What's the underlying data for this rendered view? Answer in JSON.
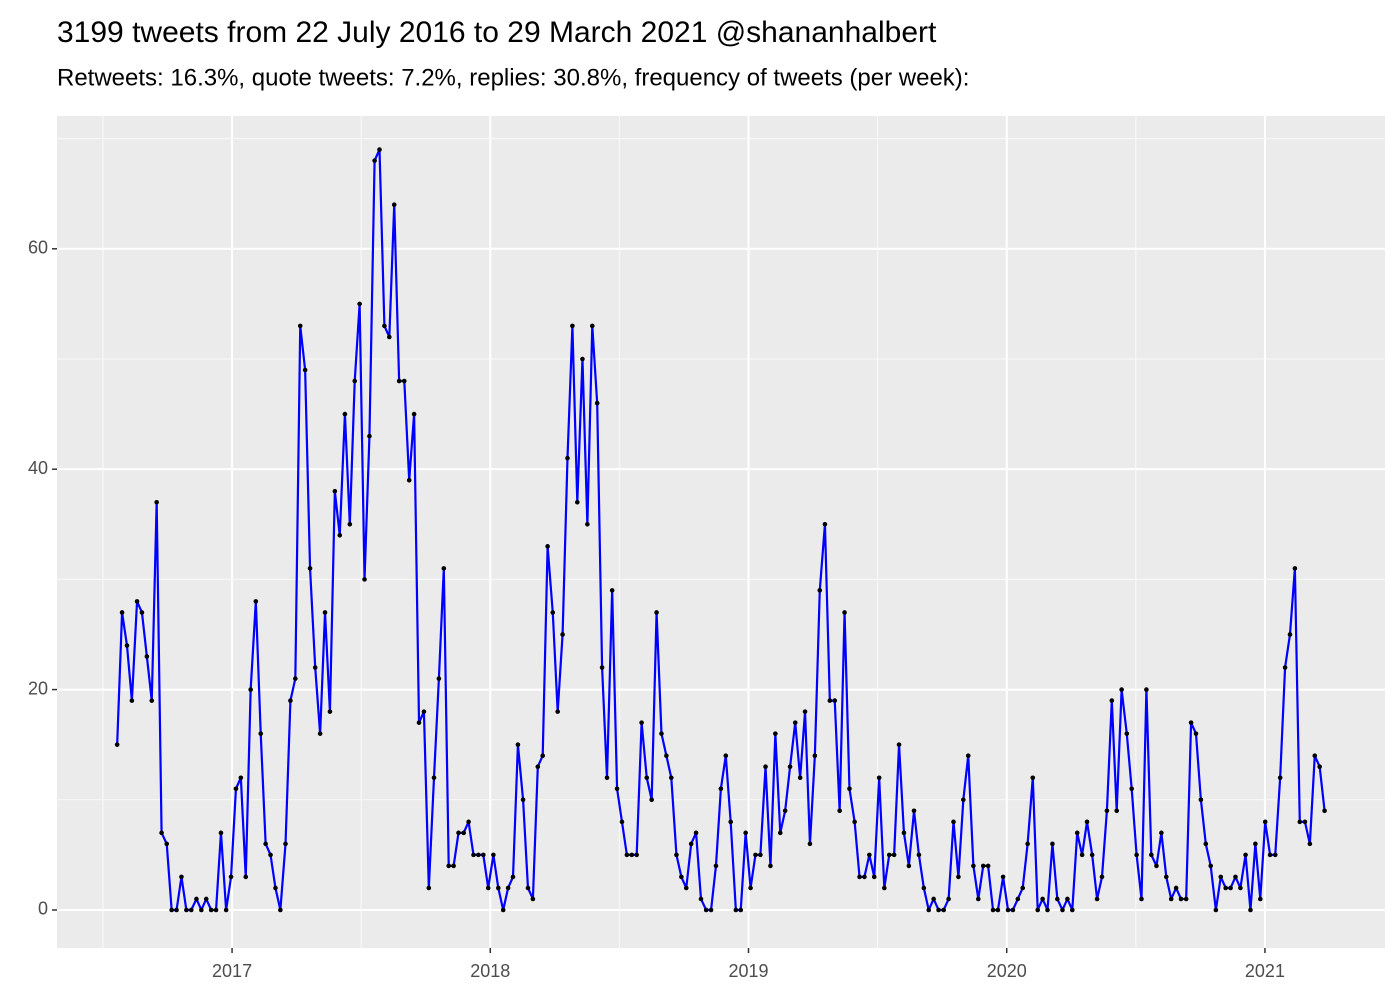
{
  "chart_data": {
    "type": "line",
    "title": "3199 tweets from 22 July 2016 to 29 March 2021 @shananhalbert",
    "subtitle": "Retweets: 16.3%, quote tweets: 7.2%, replies: 30.8%, frequency of tweets (per week):",
    "x": [
      2016.555,
      2016.574,
      2016.593,
      2016.612,
      2016.632,
      2016.651,
      2016.67,
      2016.689,
      2016.708,
      2016.727,
      2016.747,
      2016.766,
      2016.785,
      2016.804,
      2016.823,
      2016.842,
      2016.862,
      2016.881,
      2016.9,
      2016.919,
      2016.938,
      2016.957,
      2016.977,
      2016.996,
      2017.015,
      2017.034,
      2017.053,
      2017.072,
      2017.092,
      2017.111,
      2017.13,
      2017.149,
      2017.168,
      2017.187,
      2017.207,
      2017.226,
      2017.245,
      2017.264,
      2017.283,
      2017.302,
      2017.322,
      2017.341,
      2017.36,
      2017.379,
      2017.398,
      2017.417,
      2017.437,
      2017.456,
      2017.475,
      2017.494,
      2017.513,
      2017.532,
      2017.552,
      2017.571,
      2017.59,
      2017.609,
      2017.628,
      2017.647,
      2017.667,
      2017.686,
      2017.705,
      2017.724,
      2017.743,
      2017.762,
      2017.782,
      2017.801,
      2017.82,
      2017.839,
      2017.858,
      2017.877,
      2017.897,
      2017.916,
      2017.935,
      2017.954,
      2017.973,
      2017.992,
      2018.012,
      2018.031,
      2018.05,
      2018.069,
      2018.088,
      2018.107,
      2018.127,
      2018.146,
      2018.165,
      2018.184,
      2018.203,
      2018.222,
      2018.242,
      2018.261,
      2018.28,
      2018.299,
      2018.318,
      2018.337,
      2018.357,
      2018.376,
      2018.395,
      2018.414,
      2018.433,
      2018.452,
      2018.472,
      2018.491,
      2018.51,
      2018.529,
      2018.548,
      2018.567,
      2018.586,
      2018.606,
      2018.625,
      2018.644,
      2018.663,
      2018.682,
      2018.701,
      2018.721,
      2018.74,
      2018.759,
      2018.778,
      2018.797,
      2018.816,
      2018.836,
      2018.855,
      2018.874,
      2018.893,
      2018.912,
      2018.931,
      2018.951,
      2018.97,
      2018.989,
      2019.008,
      2019.027,
      2019.046,
      2019.066,
      2019.085,
      2019.104,
      2019.123,
      2019.142,
      2019.161,
      2019.181,
      2019.2,
      2019.219,
      2019.238,
      2019.257,
      2019.276,
      2019.296,
      2019.315,
      2019.334,
      2019.353,
      2019.372,
      2019.391,
      2019.411,
      2019.43,
      2019.449,
      2019.468,
      2019.487,
      2019.506,
      2019.526,
      2019.545,
      2019.564,
      2019.583,
      2019.602,
      2019.621,
      2019.641,
      2019.66,
      2019.679,
      2019.698,
      2019.717,
      2019.736,
      2019.756,
      2019.775,
      2019.794,
      2019.813,
      2019.832,
      2019.851,
      2019.871,
      2019.89,
      2019.909,
      2019.928,
      2019.947,
      2019.966,
      2019.986,
      2020.005,
      2020.024,
      2020.043,
      2020.062,
      2020.081,
      2020.101,
      2020.12,
      2020.139,
      2020.158,
      2020.177,
      2020.196,
      2020.216,
      2020.235,
      2020.254,
      2020.273,
      2020.292,
      2020.311,
      2020.331,
      2020.35,
      2020.369,
      2020.388,
      2020.407,
      2020.426,
      2020.445,
      2020.465,
      2020.484,
      2020.503,
      2020.522,
      2020.541,
      2020.56,
      2020.58,
      2020.599,
      2020.618,
      2020.637,
      2020.656,
      2020.675,
      2020.695,
      2020.714,
      2020.733,
      2020.752,
      2020.771,
      2020.79,
      2020.81,
      2020.829,
      2020.848,
      2020.867,
      2020.886,
      2020.905,
      2020.925,
      2020.944,
      2020.963,
      2020.982,
      2021.001,
      2021.02,
      2021.04,
      2021.059,
      2021.078,
      2021.097,
      2021.116,
      2021.135,
      2021.155,
      2021.174,
      2021.193,
      2021.212,
      2021.231
    ],
    "values": [
      15,
      27,
      24,
      19,
      28,
      27,
      23,
      19,
      37,
      7,
      6,
      0,
      0,
      3,
      0,
      0,
      1,
      0,
      1,
      0,
      0,
      7,
      0,
      3,
      11,
      12,
      3,
      20,
      28,
      16,
      6,
      5,
      2,
      0,
      6,
      19,
      21,
      53,
      49,
      31,
      22,
      16,
      27,
      18,
      38,
      34,
      45,
      35,
      48,
      55,
      30,
      43,
      68,
      69,
      53,
      52,
      64,
      48,
      48,
      39,
      45,
      17,
      18,
      2,
      12,
      21,
      31,
      4,
      4,
      7,
      7,
      8,
      5,
      5,
      5,
      2,
      5,
      2,
      0,
      2,
      3,
      15,
      10,
      2,
      1,
      13,
      14,
      33,
      27,
      18,
      25,
      41,
      53,
      37,
      50,
      35,
      53,
      46,
      22,
      12,
      29,
      11,
      8,
      5,
      5,
      5,
      17,
      12,
      10,
      27,
      16,
      14,
      12,
      5,
      3,
      2,
      6,
      7,
      1,
      0,
      0,
      4,
      11,
      14,
      8,
      0,
      0,
      7,
      2,
      5,
      5,
      13,
      4,
      16,
      7,
      9,
      13,
      17,
      12,
      18,
      6,
      14,
      29,
      35,
      19,
      19,
      9,
      27,
      11,
      8,
      3,
      3,
      5,
      3,
      12,
      2,
      5,
      5,
      15,
      7,
      4,
      9,
      5,
      2,
      0,
      1,
      0,
      0,
      1,
      8,
      3,
      10,
      14,
      4,
      1,
      4,
      4,
      0,
      0,
      3,
      0,
      0,
      1,
      2,
      6,
      12,
      0,
      1,
      0,
      6,
      1,
      0,
      1,
      0,
      7,
      5,
      8,
      5,
      1,
      3,
      9,
      19,
      9,
      20,
      16,
      11,
      5,
      1,
      20,
      5,
      4,
      7,
      3,
      1,
      2,
      1,
      1,
      17,
      16,
      10,
      6,
      4,
      0,
      3,
      2,
      2,
      3,
      2,
      5,
      0,
      6,
      1,
      8,
      5,
      5,
      12,
      22,
      25,
      31,
      8,
      8,
      6,
      14,
      13,
      9
    ],
    "color": "#0000ff",
    "point_color": "#000000",
    "xlim": [
      2016.322,
      2021.465
    ],
    "ylim": [
      -3.45,
      72.05
    ],
    "xticks": [
      2017,
      2018,
      2019,
      2020,
      2021
    ],
    "yticks": [
      0,
      20,
      40,
      60
    ],
    "x_minor_ticks": [
      2016.5,
      2017.5,
      2018.5,
      2019.5,
      2020.5
    ],
    "y_minor_ticks": [
      10,
      30,
      50,
      70
    ],
    "grid": true
  }
}
